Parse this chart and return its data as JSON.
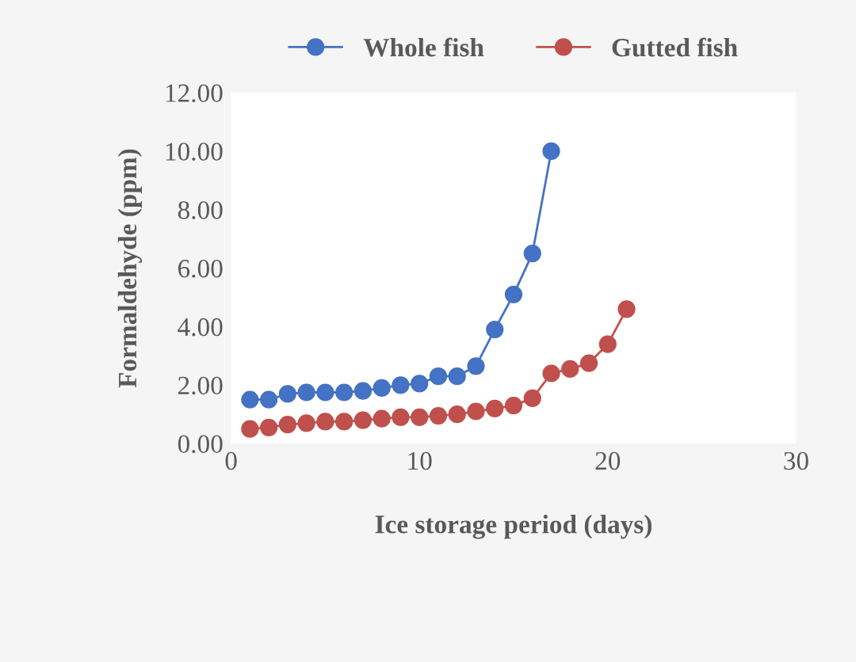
{
  "chart_data": {
    "type": "line",
    "xlabel": "Ice storage period (days)",
    "ylabel": "Formaldehyde (ppm)",
    "xlim": [
      0,
      30
    ],
    "xticks": [
      0,
      10,
      20,
      30
    ],
    "ylim": [
      0,
      12
    ],
    "yticks": [
      {
        "value": 0,
        "label": "0.00"
      },
      {
        "value": 2,
        "label": "2.00"
      },
      {
        "value": 4,
        "label": "4.00"
      },
      {
        "value": 6,
        "label": "6.00"
      },
      {
        "value": 8,
        "label": "8.00"
      },
      {
        "value": 10,
        "label": "10.00"
      },
      {
        "value": 12,
        "label": "12.00"
      }
    ],
    "marker": "circle",
    "line_style": "solid",
    "legend": "top",
    "grid": false,
    "series": [
      {
        "name": "Whole fish",
        "color": "#4472c4",
        "x": [
          1,
          2,
          3,
          4,
          5,
          6,
          7,
          8,
          9,
          10,
          11,
          12,
          13,
          14,
          15,
          16,
          17
        ],
        "values": [
          1.5,
          1.5,
          1.7,
          1.75,
          1.75,
          1.75,
          1.8,
          1.9,
          2.0,
          2.05,
          2.3,
          2.3,
          2.65,
          3.9,
          5.1,
          6.5,
          10.0
        ]
      },
      {
        "name": "Gutted fish",
        "color": "#c0504d",
        "x": [
          1,
          2,
          3,
          4,
          5,
          6,
          7,
          8,
          9,
          10,
          11,
          12,
          13,
          14,
          15,
          16,
          17,
          18,
          19,
          20,
          21
        ],
        "values": [
          0.5,
          0.55,
          0.65,
          0.7,
          0.75,
          0.75,
          0.8,
          0.85,
          0.9,
          0.9,
          0.95,
          1.0,
          1.1,
          1.2,
          1.3,
          1.55,
          2.4,
          2.55,
          2.75,
          3.4,
          4.6
        ]
      }
    ]
  }
}
